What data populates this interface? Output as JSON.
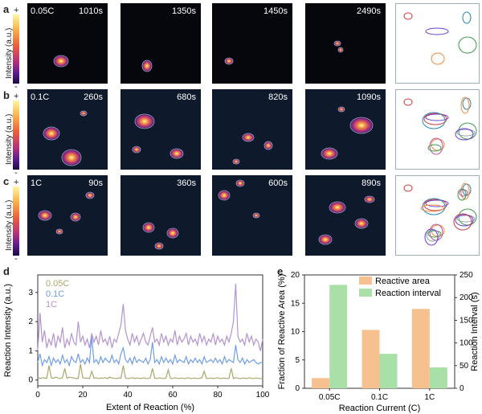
{
  "rows": [
    {
      "label": "a",
      "colorbar_title": "Intensity (a.u.)",
      "colorbar_top": "+",
      "colorbar_bottom": "-",
      "rate": "0.05C",
      "times": [
        "1010s",
        "1350s",
        "1450s",
        "2490s"
      ]
    },
    {
      "label": "b",
      "colorbar_title": "Intensity (a.u.)",
      "colorbar_top": "+",
      "colorbar_bottom": "-",
      "rate": "0.1C",
      "times": [
        "260s",
        "680s",
        "820s",
        "1090s"
      ]
    },
    {
      "label": "c",
      "colorbar_title": "Intensity (a.u.)",
      "colorbar_top": "+",
      "colorbar_bottom": "-",
      "rate": "1C",
      "times": [
        "90s",
        "360s",
        "600s",
        "890s"
      ]
    }
  ],
  "chart_data": [
    {
      "panel": "d",
      "type": "line",
      "xlabel": "Extent of Reaction (%)",
      "ylabel": "Reaction Intensity (a.u.)",
      "xlim": [
        0,
        100
      ],
      "ylim": [
        -0.2,
        3.6
      ],
      "xticks": [
        "0",
        "20",
        "40",
        "60",
        "80",
        "100"
      ],
      "yticks": [
        "0",
        "1",
        "2",
        "3"
      ],
      "legend_placement": "top-left",
      "series": [
        {
          "name": "0.05C",
          "color": "#a7a86a",
          "x": [
            0,
            1,
            2,
            3,
            4,
            5,
            6,
            7,
            8,
            9,
            10,
            11,
            12,
            13,
            14,
            15,
            16,
            17,
            18,
            19,
            20,
            21,
            22,
            23,
            24,
            25,
            26,
            27,
            28,
            29,
            30,
            31,
            32,
            33,
            34,
            35,
            36,
            37,
            38,
            39,
            40,
            41,
            42,
            43,
            44,
            45,
            46,
            47,
            48,
            49,
            50,
            51,
            52,
            53,
            54,
            55,
            56,
            57,
            58,
            59,
            60,
            61,
            62,
            63,
            64,
            65,
            66,
            67,
            68,
            69,
            70,
            71,
            72,
            73,
            74,
            75,
            76,
            77,
            78,
            79,
            80,
            81,
            82,
            83,
            84,
            85,
            86,
            87,
            88,
            89,
            90,
            91,
            92,
            93,
            94,
            95,
            96,
            97,
            98,
            99,
            100
          ],
          "values": [
            0.1,
            0.05,
            0.08,
            0.07,
            0.06,
            0.5,
            0.08,
            0.06,
            0.1,
            0.07,
            0.05,
            0.08,
            0.4,
            0.06,
            0.1,
            0.08,
            0.07,
            0.05,
            0.06,
            0.55,
            0.08,
            0.06,
            0.07,
            0.05,
            0.3,
            0.06,
            0.08,
            0.05,
            0.07,
            0.06,
            0.08,
            0.05,
            0.1,
            0.07,
            0.06,
            0.05,
            0.08,
            0.06,
            0.5,
            0.07,
            0.05,
            0.06,
            0.08,
            0.05,
            0.07,
            0.06,
            0.05,
            0.08,
            0.06,
            0.05,
            0.07,
            0.4,
            0.06,
            0.05,
            0.08,
            0.06,
            0.05,
            0.07,
            0.35,
            0.06,
            0.05,
            0.08,
            0.06,
            0.05,
            0.07,
            0.05,
            0.06,
            0.08,
            0.05,
            0.06,
            0.07,
            0.05,
            0.06,
            0.08,
            0.3,
            0.05,
            0.06,
            0.07,
            0.05,
            0.06,
            0.08,
            0.05,
            0.06,
            0.07,
            0.05,
            0.06,
            0.4,
            0.05,
            0.08,
            0.06,
            0.05,
            0.07,
            0.06,
            0.05,
            0.08,
            0.06,
            0.05,
            0.07,
            0.06,
            0.05,
            0.06
          ]
        },
        {
          "name": "0.1C",
          "color": "#6f9ee6",
          "x": [
            0,
            1,
            2,
            3,
            4,
            5,
            6,
            7,
            8,
            9,
            10,
            11,
            12,
            13,
            14,
            15,
            16,
            17,
            18,
            19,
            20,
            21,
            22,
            23,
            24,
            25,
            26,
            27,
            28,
            29,
            30,
            31,
            32,
            33,
            34,
            35,
            36,
            37,
            38,
            39,
            40,
            41,
            42,
            43,
            44,
            45,
            46,
            47,
            48,
            49,
            50,
            51,
            52,
            53,
            54,
            55,
            56,
            57,
            58,
            59,
            60,
            61,
            62,
            63,
            64,
            65,
            66,
            67,
            68,
            69,
            70,
            71,
            72,
            73,
            74,
            75,
            76,
            77,
            78,
            79,
            80,
            81,
            82,
            83,
            84,
            85,
            86,
            87,
            88,
            89,
            90,
            91,
            92,
            93,
            94,
            95,
            96,
            97,
            98,
            99,
            100
          ],
          "values": [
            0.6,
            0.9,
            0.5,
            0.7,
            0.6,
            0.8,
            0.5,
            0.75,
            0.6,
            0.7,
            0.55,
            0.85,
            0.6,
            0.7,
            0.5,
            0.8,
            0.65,
            0.6,
            0.9,
            0.6,
            0.7,
            0.55,
            0.75,
            0.6,
            1.5,
            0.6,
            0.7,
            0.55,
            0.8,
            0.6,
            0.75,
            0.65,
            0.6,
            0.85,
            0.6,
            0.7,
            0.55,
            0.9,
            1.1,
            0.7,
            0.6,
            0.75,
            0.55,
            0.8,
            0.6,
            0.7,
            0.65,
            0.6,
            0.75,
            0.55,
            0.7,
            1.3,
            0.6,
            0.7,
            0.55,
            0.8,
            0.6,
            0.75,
            0.6,
            0.7,
            0.55,
            0.85,
            0.6,
            0.7,
            0.65,
            0.6,
            0.8,
            0.55,
            0.7,
            0.6,
            0.75,
            0.6,
            0.7,
            0.55,
            0.8,
            0.6,
            0.65,
            0.7,
            0.6,
            0.75,
            0.6,
            0.7,
            0.55,
            0.8,
            0.6,
            0.7,
            0.65,
            0.6,
            1.2,
            0.7,
            0.6,
            0.75,
            0.55,
            0.7,
            0.6,
            0.65,
            0.7,
            0.6,
            0.55,
            0.6,
            0.6
          ]
        },
        {
          "name": "1C",
          "color": "#b394d0",
          "x": [
            0,
            1,
            2,
            3,
            4,
            5,
            6,
            7,
            8,
            9,
            10,
            11,
            12,
            13,
            14,
            15,
            16,
            17,
            18,
            19,
            20,
            21,
            22,
            23,
            24,
            25,
            26,
            27,
            28,
            29,
            30,
            31,
            32,
            33,
            34,
            35,
            36,
            37,
            38,
            39,
            40,
            41,
            42,
            43,
            44,
            45,
            46,
            47,
            48,
            49,
            50,
            51,
            52,
            53,
            54,
            55,
            56,
            57,
            58,
            59,
            60,
            61,
            62,
            63,
            64,
            65,
            66,
            67,
            68,
            69,
            70,
            71,
            72,
            73,
            74,
            75,
            76,
            77,
            78,
            79,
            80,
            81,
            82,
            83,
            84,
            85,
            86,
            87,
            88,
            89,
            90,
            91,
            92,
            93,
            94,
            95,
            96,
            97,
            98,
            99,
            100
          ],
          "values": [
            1.0,
            2.3,
            1.3,
            1.7,
            1.1,
            1.4,
            1.2,
            1.6,
            1.1,
            1.5,
            1.3,
            1.8,
            1.1,
            1.4,
            1.2,
            1.6,
            1.3,
            1.2,
            2.0,
            1.3,
            1.5,
            1.2,
            1.4,
            1.1,
            1.6,
            1.3,
            1.5,
            1.2,
            1.7,
            1.3,
            1.4,
            1.2,
            1.5,
            1.1,
            1.4,
            1.3,
            1.6,
            1.9,
            2.6,
            1.7,
            1.4,
            1.2,
            1.6,
            1.3,
            1.5,
            1.2,
            1.4,
            1.6,
            1.3,
            1.2,
            1.5,
            1.8,
            1.3,
            1.4,
            1.2,
            1.6,
            1.3,
            1.5,
            1.2,
            1.4,
            1.3,
            1.7,
            1.2,
            1.5,
            1.3,
            1.4,
            1.6,
            1.2,
            1.5,
            1.3,
            1.4,
            1.2,
            1.6,
            1.3,
            1.5,
            1.2,
            1.4,
            1.3,
            1.6,
            1.2,
            1.5,
            1.3,
            1.4,
            1.2,
            1.5,
            1.3,
            1.6,
            2.0,
            3.3,
            1.5,
            1.3,
            1.4,
            1.2,
            1.6,
            1.3,
            1.5,
            1.2,
            1.4,
            1.3,
            1.0,
            1.4
          ]
        }
      ]
    },
    {
      "panel": "e",
      "type": "bar",
      "xlabel": "Reaction Current (C)",
      "ylabel_left": "Fraction of Reactive Area (%)",
      "ylabel_right": "Reaction Interval (s)",
      "categories": [
        "0.05C",
        "0.1C",
        "1C"
      ],
      "ylim_left": [
        0,
        20
      ],
      "ylim_right": [
        0,
        250
      ],
      "yticks_left": [
        "0",
        "5",
        "10",
        "15",
        "20"
      ],
      "yticks_right": [
        "0",
        "50",
        "100",
        "150",
        "200",
        "250"
      ],
      "legend_placement": "top-right",
      "series": [
        {
          "name": "Reactive area",
          "axis": "left",
          "color": "#f6c08f",
          "values": [
            1.8,
            10.3,
            14.0
          ]
        },
        {
          "name": "Reaction interval",
          "axis": "right",
          "color": "#a9e0a8",
          "values": [
            228,
            76,
            46
          ]
        }
      ]
    }
  ]
}
